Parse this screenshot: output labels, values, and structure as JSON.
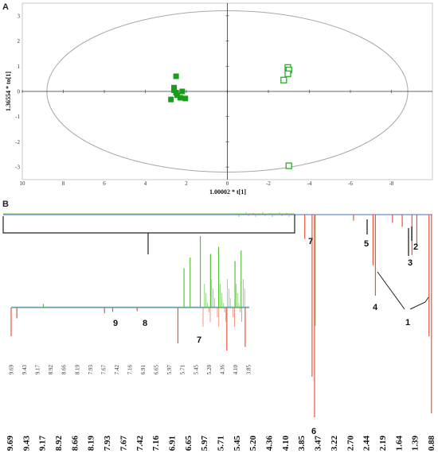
{
  "colors": {
    "filled": "#1a9e1a",
    "open": "#2aae2a",
    "ellipse": "#a8a8a8",
    "axis": "#333333",
    "nmr_red": "#e8553a",
    "nmr_green": "#5bbf3a",
    "nmr_blue": "#3b6fd8"
  },
  "chart_data": [
    {
      "panel": "A",
      "type": "scatter",
      "xlabel": "1.00002 * t[1]",
      "ylabel": "1.36554 * to[1]",
      "x_reversed": true,
      "xlim": [
        10,
        -10
      ],
      "ylim": [
        -3.5,
        3.5
      ],
      "x_ticks": [
        "10",
        "8",
        "6",
        "4",
        "2",
        "0",
        "-2",
        "-4",
        "-6",
        "-8"
      ],
      "x_tick_values": [
        10,
        8,
        6,
        4,
        2,
        0,
        -2,
        -4,
        -6,
        -8
      ],
      "y_ticks": [
        "3",
        "2",
        "1",
        "0",
        "-1",
        "-2",
        "-3"
      ],
      "y_tick_values": [
        3,
        2,
        1,
        0,
        -1,
        -2,
        -3
      ],
      "ellipse": {
        "rx": 8.8,
        "ry": 3.2
      },
      "series": [
        {
          "marker": "filled-square",
          "x": [
            2.5,
            2.6,
            2.6,
            2.5,
            2.45,
            2.3,
            2.05,
            2.75,
            2.2
          ],
          "y": [
            0.6,
            0.15,
            0.05,
            -0.05,
            -0.15,
            -0.25,
            -0.28,
            -0.32,
            0.0
          ]
        },
        {
          "marker": "open-square",
          "x": [
            -2.95,
            -3.0,
            -2.95,
            -2.75,
            -3.0
          ],
          "y": [
            0.95,
            0.85,
            0.7,
            0.45,
            -2.95
          ]
        }
      ]
    },
    {
      "panel": "B",
      "type": "line",
      "title_label": "B",
      "x_reversed": true,
      "main_ticks": [
        "9.69",
        "9.43",
        "9.17",
        "8.92",
        "8.66",
        "8.19",
        "7.93",
        "7.67",
        "7.42",
        "7.16",
        "6.91",
        "6.65",
        "5.97",
        "5.71",
        "5.45",
        "5.20",
        "4.36",
        "4.10",
        "3.85",
        "3.47",
        "3.22",
        "2.70",
        "2.44",
        "2.19",
        "1.64",
        "1.39",
        "0.88"
      ],
      "inset_ticks": [
        "9.69",
        "9.43",
        "9.17",
        "8.92",
        "8.66",
        "8.19",
        "7.93",
        "7.67",
        "7.42",
        "7.16",
        "6.91",
        "6.65",
        "5.97",
        "5.71",
        "5.45",
        "5.20",
        "4.36",
        "4.10",
        "3.85"
      ],
      "main_peaks": [
        {
          "ppm": 3.3,
          "depth": 1.0
        },
        {
          "ppm": 3.35,
          "depth": 0.8
        },
        {
          "ppm": 3.5,
          "depth": 0.12
        },
        {
          "ppm": 2.05,
          "depth": 0.4
        },
        {
          "ppm": 2.1,
          "depth": 0.25
        },
        {
          "ppm": 1.3,
          "depth": 0.2
        },
        {
          "ppm": 1.2,
          "depth": 0.15
        },
        {
          "ppm": 0.9,
          "depth": 0.98
        },
        {
          "ppm": 0.95,
          "depth": 0.6
        },
        {
          "ppm": 1.5,
          "depth": 0.06
        },
        {
          "ppm": 1.7,
          "depth": 0.04
        },
        {
          "ppm": 2.5,
          "depth": 0.03
        }
      ],
      "inset_peaks": [
        {
          "ppm": 9.69,
          "depth": -0.4
        },
        {
          "ppm": 9.55,
          "depth": -0.15
        },
        {
          "ppm": 8.9,
          "depth": 0.05
        },
        {
          "ppm": 7.4,
          "depth": -0.08
        },
        {
          "ppm": 7.2,
          "depth": -0.06
        },
        {
          "ppm": 6.6,
          "depth": -0.05
        },
        {
          "ppm": 5.6,
          "depth": -0.5
        },
        {
          "ppm": 5.45,
          "depth": 0.55
        },
        {
          "ppm": 5.3,
          "depth": 0.7
        },
        {
          "ppm": 5.05,
          "depth": 1.0
        },
        {
          "ppm": 4.8,
          "depth": 0.75
        },
        {
          "ppm": 4.6,
          "depth": 0.85
        },
        {
          "ppm": 4.4,
          "depth": -0.6
        },
        {
          "ppm": 4.2,
          "depth": 0.65
        },
        {
          "ppm": 4.05,
          "depth": 0.8
        },
        {
          "ppm": 3.95,
          "depth": -0.55
        }
      ],
      "annotations": [
        "1",
        "2",
        "3",
        "4",
        "5",
        "6",
        "7",
        "7",
        "8",
        "9"
      ]
    }
  ]
}
